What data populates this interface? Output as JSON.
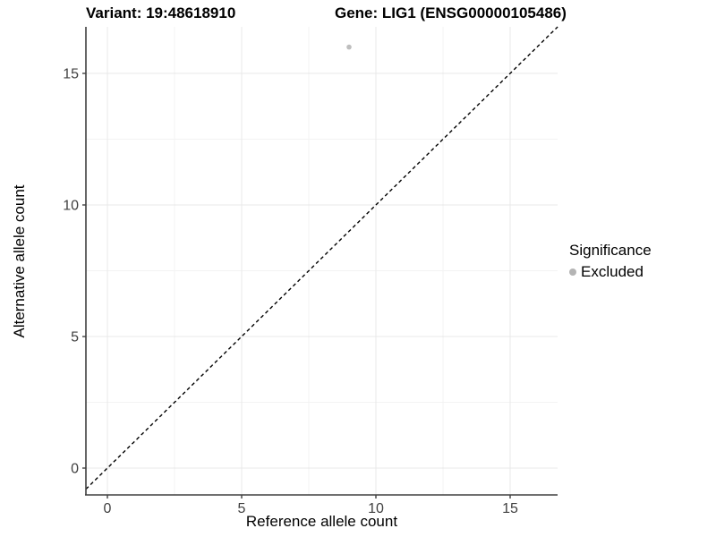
{
  "chart_data": {
    "type": "scatter",
    "title_left": "Variant: 19:48618910",
    "title_right": "Gene: LIG1 (ENSG00000105486)",
    "xlabel": "Reference allele count",
    "ylabel": "Alternative allele count",
    "x_ticks": [
      0,
      5,
      10,
      15
    ],
    "y_ticks": [
      0,
      5,
      10,
      15
    ],
    "x_minor_ticks": [
      2.5,
      7.5,
      12.5
    ],
    "y_minor_ticks": [
      2.5,
      7.5,
      12.5
    ],
    "xlim": [
      -0.8,
      16.77
    ],
    "ylim": [
      -1.02,
      16.77
    ],
    "grid": "on",
    "legend_position": "right",
    "series": [
      {
        "name": "Excluded",
        "color": "#bebebe",
        "points": [
          {
            "x": 9,
            "y": 16
          }
        ]
      }
    ],
    "abline": {
      "slope": 1,
      "intercept": 0,
      "style": "dashed",
      "color": "#000000"
    },
    "legend": {
      "title": "Significance",
      "items": [
        {
          "label": "Excluded",
          "color": "#b4b4b4"
        }
      ]
    }
  },
  "style_colors": {
    "axis_line": "#404040",
    "tick_label": "#404040",
    "grid_major": "#e8e8e8",
    "grid_minor": "#f3f3f3",
    "background": "#ffffff"
  }
}
